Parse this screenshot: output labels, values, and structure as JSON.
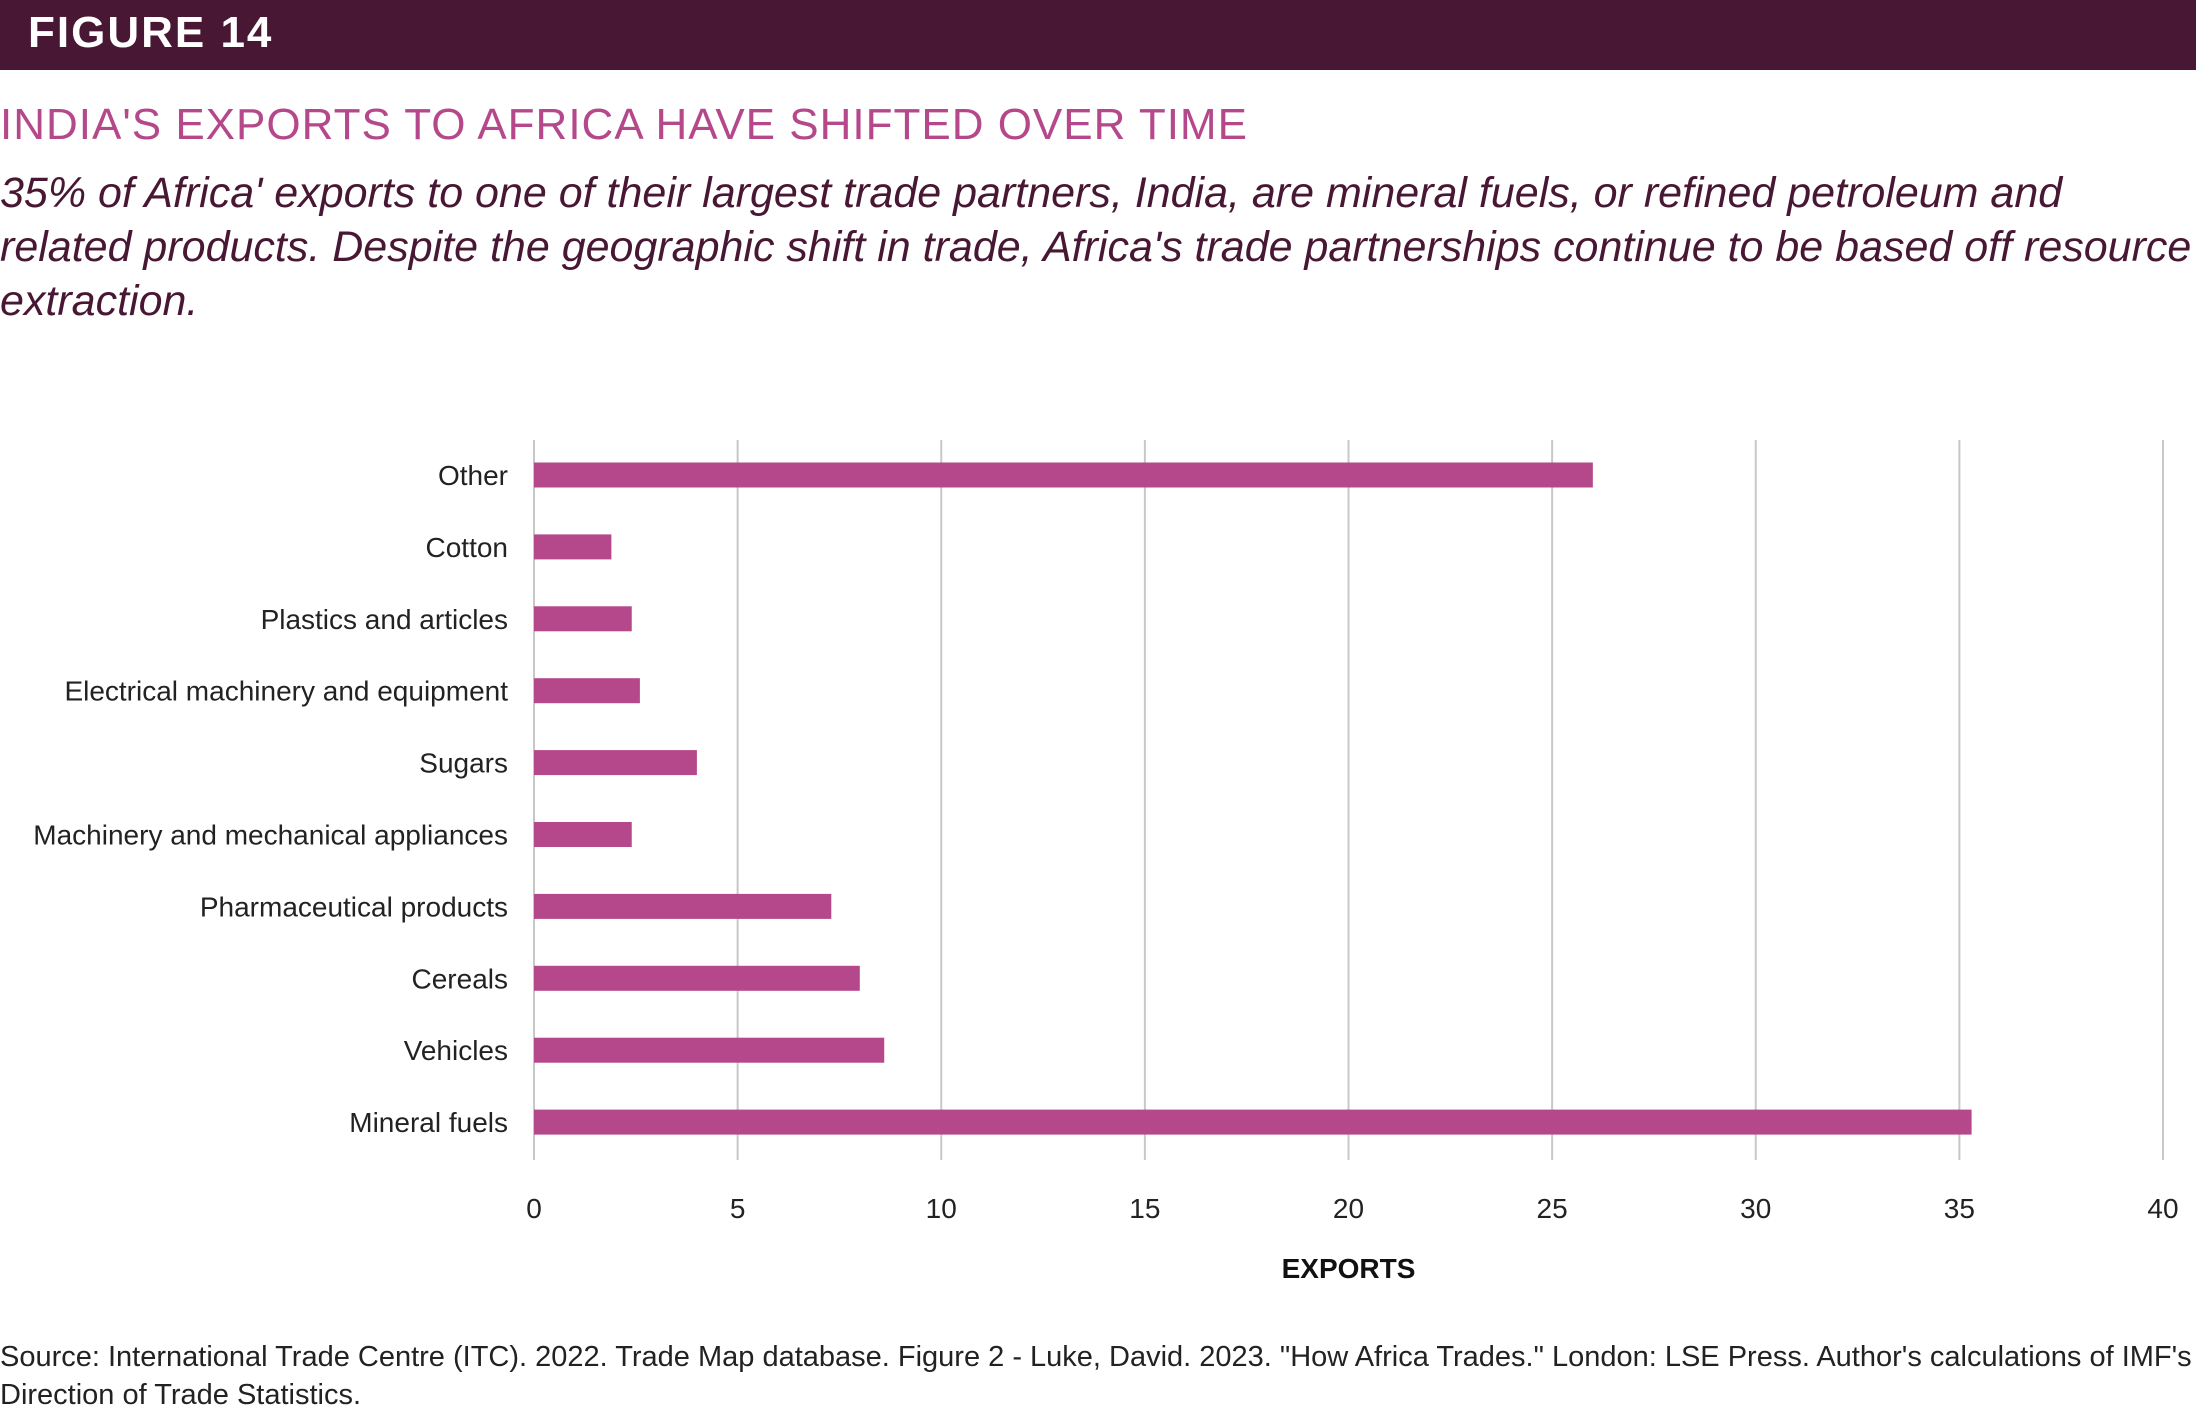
{
  "header": {
    "figure_label": "FIGURE 14"
  },
  "title": "INDIA'S EXPORTS TO AFRICA HAVE SHIFTED OVER TIME",
  "subtitle": "35% of Africa' exports to one of their largest trade partners, India, are mineral fuels, or refined petroleum and related products. Despite the geographic shift in trade, Africa's trade partnerships continue to be based off resource extraction.",
  "source": "Source: International Trade Centre (ITC). 2022. Trade Map database. Figure 2 - Luke, David. 2023. \"How Africa Trades.\" London: LSE Press. Author's calculations of IMF's Direction of Trade Statistics.",
  "chart_data": {
    "type": "bar",
    "orientation": "horizontal",
    "categories": [
      "Other",
      "Cotton",
      "Plastics and articles",
      "Electrical machinery and equipment",
      "Sugars",
      "Machinery and mechanical appliances",
      "Pharmaceutical products",
      "Cereals",
      "Vehicles",
      "Mineral fuels"
    ],
    "values": [
      26.0,
      1.9,
      2.4,
      2.6,
      4.0,
      2.4,
      7.3,
      8.0,
      8.6,
      35.3
    ],
    "xlabel": "EXPORTS",
    "ylabel": "",
    "xlim": [
      0,
      40
    ],
    "xticks": [
      "0",
      "5",
      "10",
      "15",
      "20",
      "25",
      "30",
      "35",
      "40"
    ],
    "grid": true,
    "bar_color": "#b5488b"
  }
}
